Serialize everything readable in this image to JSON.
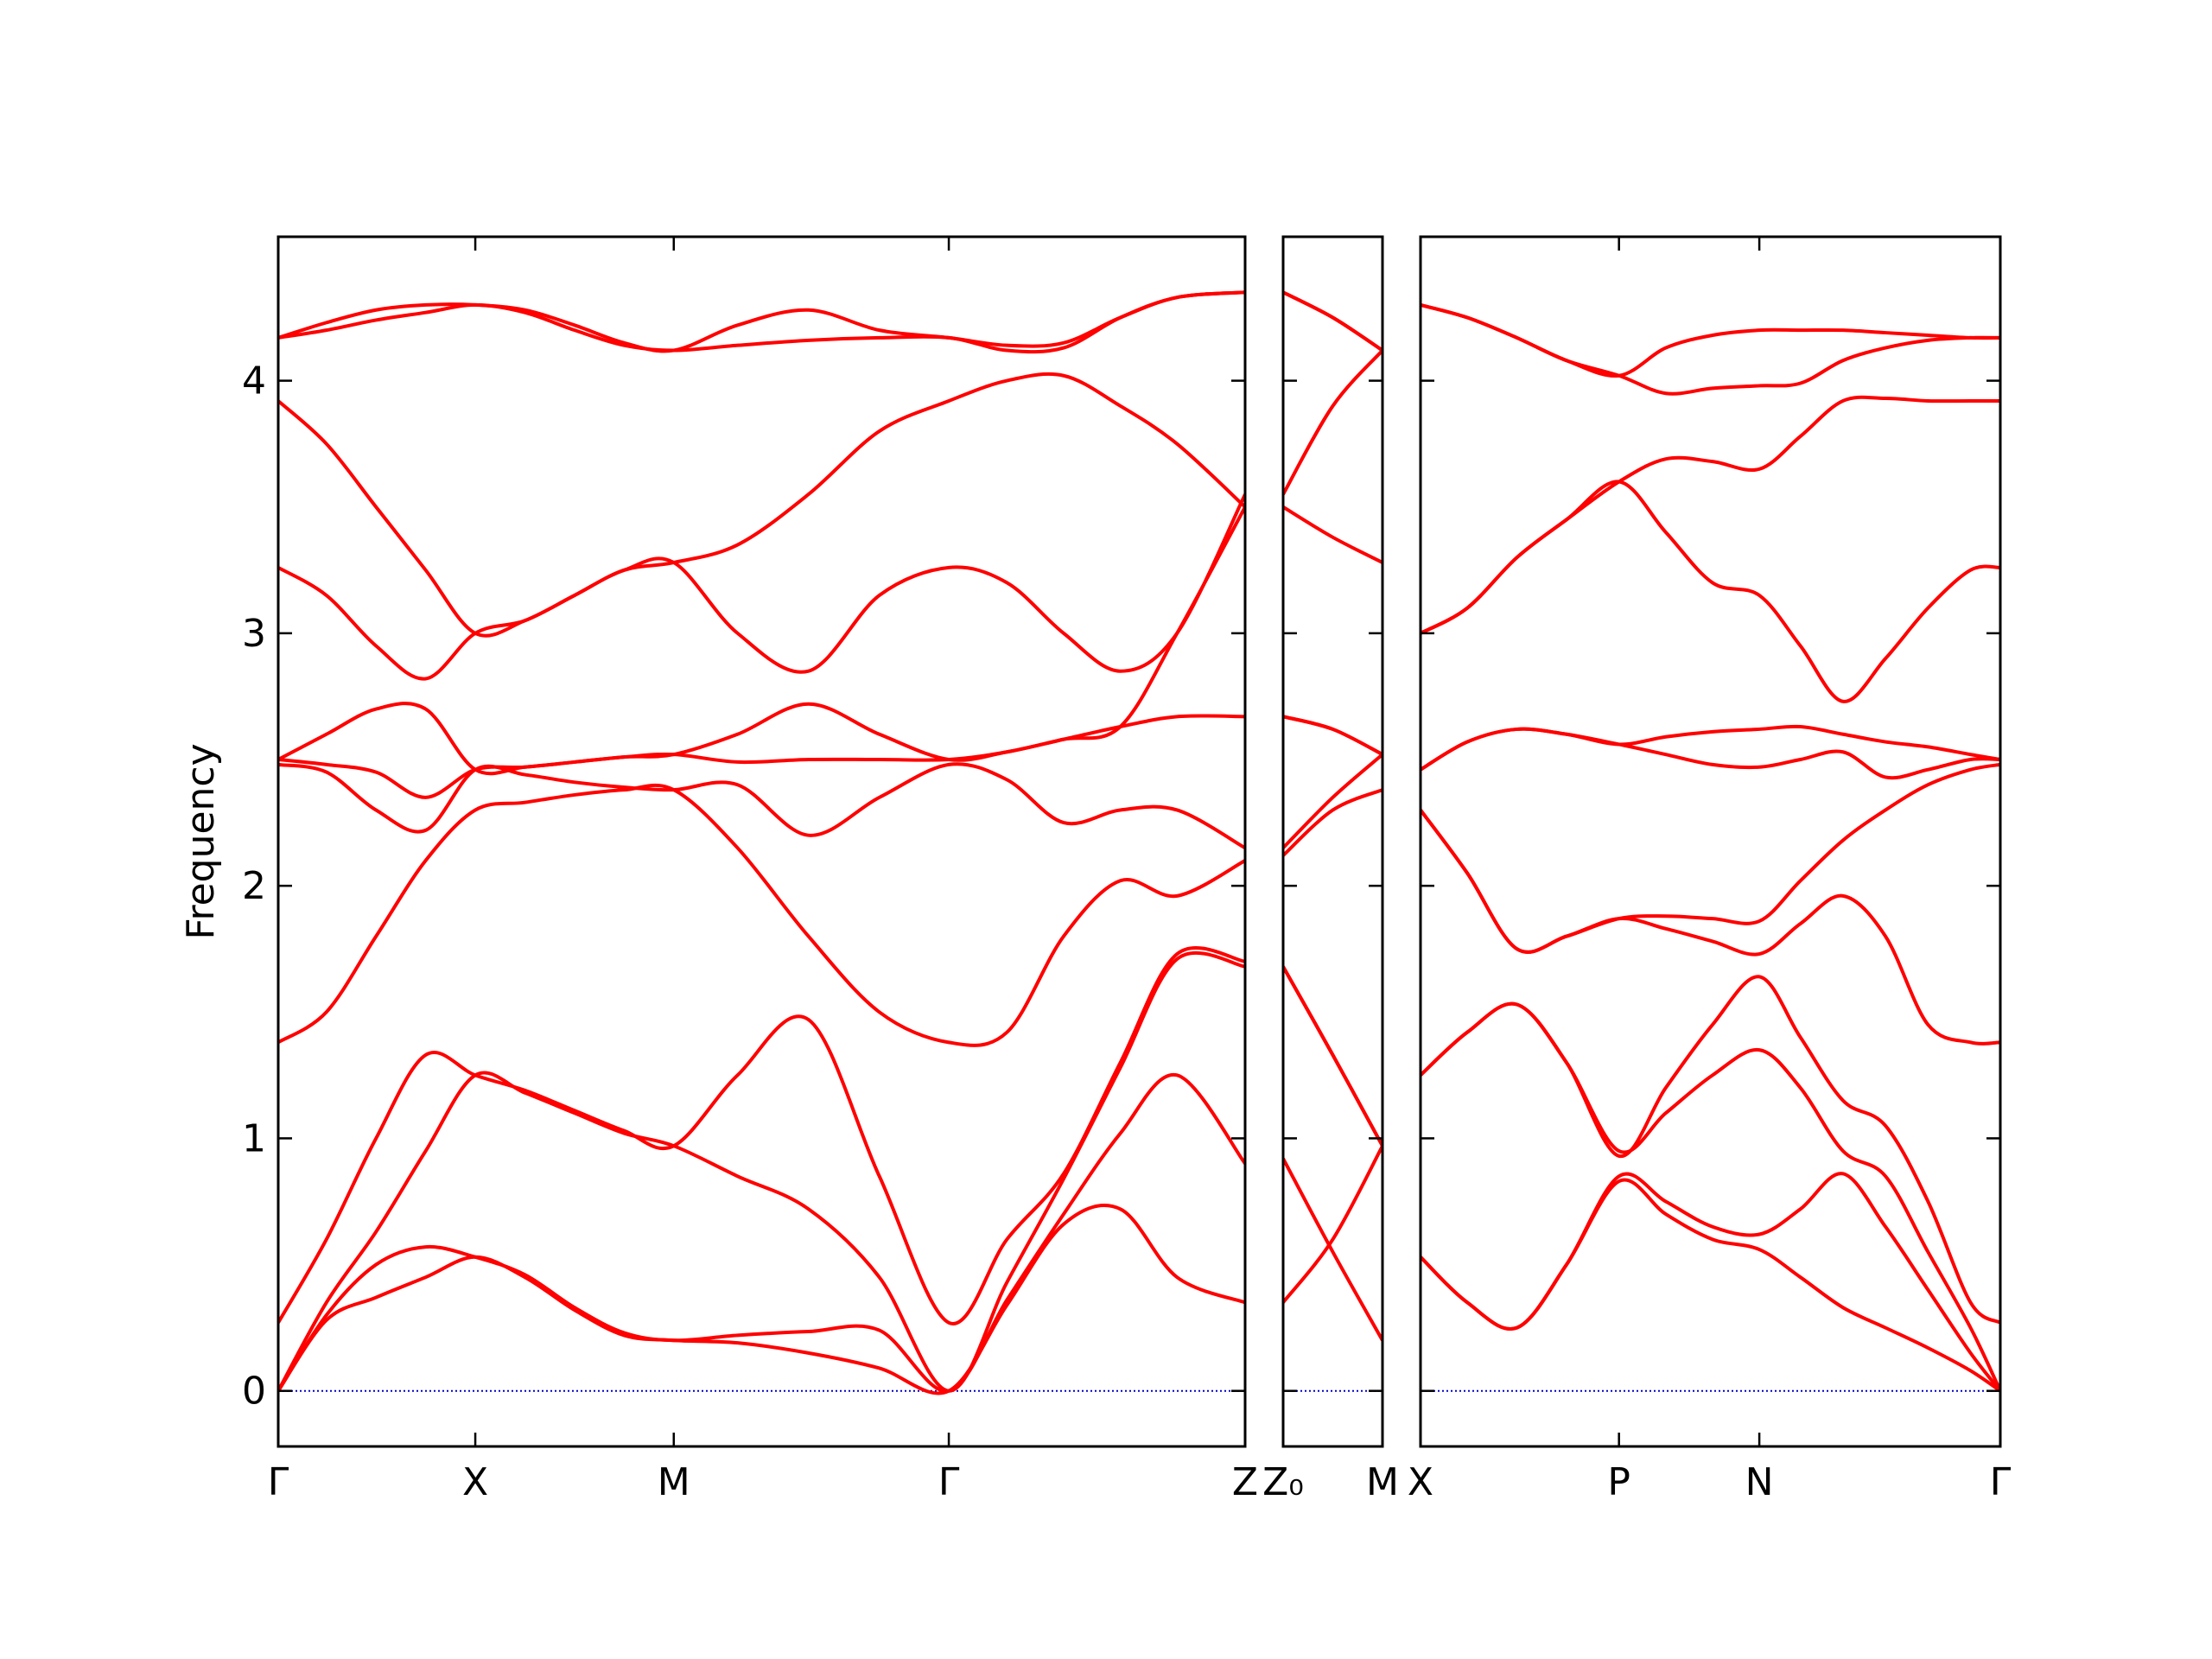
{
  "chart_data": [
    {
      "type": "line",
      "ylabel": "Frequency",
      "x": [
        0,
        0.34,
        0.69,
        1.04,
        1.39,
        1.74,
        2.09,
        2.44,
        2.79,
        3.24,
        3.74,
        4.24,
        4.73,
        5.14,
        5.54,
        5.94,
        6.34,
        6.82
      ],
      "xlim": [
        0,
        6.82
      ],
      "xticks": [
        {
          "value": 0,
          "label": "Γ"
        },
        {
          "value": 1.39,
          "label": "X"
        },
        {
          "value": 2.79,
          "label": "M"
        },
        {
          "value": 4.73,
          "label": "Γ"
        },
        {
          "value": 6.82,
          "label": "Z"
        }
      ],
      "ylim": [
        -0.22,
        4.57
      ],
      "yticks": [
        0,
        1,
        2,
        3,
        4
      ],
      "ytick_labels": true,
      "hlines": [
        0
      ],
      "hline_color": "#0000cc",
      "series": [
        {
          "color": "#ff0000",
          "values": [
            0,
            0.28,
            0.37,
            0.45,
            0.53,
            0.45,
            0.32,
            0.22,
            0.2,
            0.19,
            0.15,
            0.09,
            0,
            0.34,
            0.66,
            0.72,
            0.45,
            0.35
          ]
        },
        {
          "color": "#ff0000",
          "values": [
            0,
            0.3,
            0.5,
            0.57,
            0.53,
            0.46,
            0.33,
            0.23,
            0.2,
            0.22,
            0.235,
            0.24,
            0,
            0.36,
            0.7,
            1.02,
            1.25,
            0.9
          ]
        },
        {
          "color": "#ff0000",
          "values": [
            0,
            0.35,
            0.63,
            0.95,
            1.25,
            1.18,
            1.1,
            1.02,
            0.97,
            0.85,
            0.72,
            0.45,
            0,
            0.43,
            0.84,
            1.28,
            1.71,
            1.68
          ]
        },
        {
          "color": "#ff0000",
          "values": [
            0.27,
            0.6,
            1.0,
            1.33,
            1.25,
            1.19,
            1.11,
            1.03,
            0.97,
            1.25,
            1.47,
            0.85,
            0.27,
            0.6,
            0.86,
            1.3,
            1.73,
            1.7
          ]
        },
        {
          "color": "#ff0000",
          "values": [
            1.38,
            1.5,
            1.8,
            2.1,
            2.3,
            2.33,
            2.36,
            2.38,
            2.38,
            2.15,
            1.8,
            1.5,
            1.38,
            1.42,
            1.8,
            2.02,
            1.96,
            2.1
          ]
        },
        {
          "color": "#ff0000",
          "values": [
            2.48,
            2.45,
            2.3,
            2.22,
            2.46,
            2.44,
            2.41,
            2.39,
            2.38,
            2.4,
            2.2,
            2.35,
            2.48,
            2.42,
            2.25,
            2.3,
            2.3,
            2.15
          ]
        },
        {
          "color": "#ff0000",
          "values": [
            2.5,
            2.48,
            2.45,
            2.35,
            2.46,
            2.47,
            2.49,
            2.51,
            2.52,
            2.49,
            2.5,
            2.5,
            2.5,
            2.53,
            2.58,
            2.63,
            2.67,
            2.67
          ]
        },
        {
          "color": "#ff0000",
          "values": [
            2.5,
            2.6,
            2.7,
            2.7,
            2.46,
            2.47,
            2.49,
            2.51,
            2.52,
            2.6,
            2.72,
            2.6,
            2.5,
            2.53,
            2.58,
            2.63,
            3.0,
            3.5
          ]
        },
        {
          "color": "#ff0000",
          "values": [
            3.26,
            3.15,
            2.95,
            2.82,
            3.0,
            3.05,
            3.15,
            3.25,
            3.28,
            3.0,
            2.85,
            3.15,
            3.26,
            3.2,
            3.0,
            2.85,
            3.0,
            3.55
          ]
        },
        {
          "color": "#ff0000",
          "values": [
            3.92,
            3.75,
            3.5,
            3.25,
            3.0,
            3.05,
            3.15,
            3.25,
            3.28,
            3.35,
            3.55,
            3.8,
            3.92,
            4.0,
            4.02,
            3.9,
            3.75,
            3.5
          ]
        },
        {
          "color": "#ff0000",
          "values": [
            4.17,
            4.2,
            4.24,
            4.27,
            4.3,
            4.27,
            4.2,
            4.14,
            4.12,
            4.14,
            4.16,
            4.17,
            4.17,
            4.12,
            4.13,
            4.25,
            4.33,
            4.35
          ]
        },
        {
          "color": "#ff0000",
          "values": [
            4.17,
            4.23,
            4.28,
            4.3,
            4.3,
            4.28,
            4.22,
            4.15,
            4.12,
            4.22,
            4.28,
            4.2,
            4.17,
            4.14,
            4.15,
            4.25,
            4.33,
            4.35
          ]
        }
      ]
    },
    {
      "type": "line",
      "x": [
        0,
        0.35,
        0.7
      ],
      "xlim": [
        0,
        0.7
      ],
      "xticks": [
        {
          "value": 0,
          "label": "Z₀"
        },
        {
          "value": 0.7,
          "label": "M"
        }
      ],
      "ylim": [
        -0.22,
        4.57
      ],
      "yticks": [
        0,
        1,
        2,
        3,
        4
      ],
      "ytick_labels": false,
      "hlines": [
        0
      ],
      "hline_color": "#0000cc",
      "series": [
        {
          "color": "#ff0000",
          "values": [
            0.92,
            0.55,
            0.2
          ]
        },
        {
          "color": "#ff0000",
          "values": [
            0.35,
            0.6,
            0.97
          ]
        },
        {
          "color": "#ff0000",
          "values": [
            1.68,
            1.33,
            0.97
          ]
        },
        {
          "color": "#ff0000",
          "values": [
            1.68,
            1.33,
            0.97
          ]
        },
        {
          "color": "#ff0000",
          "values": [
            2.12,
            2.3,
            2.38
          ]
        },
        {
          "color": "#ff0000",
          "values": [
            2.15,
            2.35,
            2.52
          ]
        },
        {
          "color": "#ff0000",
          "values": [
            2.67,
            2.62,
            2.52
          ]
        },
        {
          "color": "#ff0000",
          "values": [
            2.67,
            2.62,
            2.52
          ]
        },
        {
          "color": "#ff0000",
          "values": [
            3.5,
            3.38,
            3.28
          ]
        },
        {
          "color": "#ff0000",
          "values": [
            3.55,
            3.9,
            4.12
          ]
        },
        {
          "color": "#ff0000",
          "values": [
            4.35,
            4.25,
            4.12
          ]
        },
        {
          "color": "#ff0000",
          "values": [
            4.35,
            4.25,
            4.12
          ]
        }
      ]
    },
    {
      "type": "line",
      "x": [
        0,
        0.33,
        0.68,
        1.03,
        1.4,
        1.73,
        2.06,
        2.39,
        2.68,
        2.98,
        3.28,
        3.58,
        3.88,
        4.09
      ],
      "xlim": [
        0,
        4.09
      ],
      "xticks": [
        {
          "value": 0,
          "label": "X"
        },
        {
          "value": 1.4,
          "label": "P"
        },
        {
          "value": 2.39,
          "label": "N"
        },
        {
          "value": 4.09,
          "label": "Γ"
        }
      ],
      "ylim": [
        -0.22,
        4.57
      ],
      "yticks": [
        0,
        1,
        2,
        3,
        4
      ],
      "ytick_labels": false,
      "hlines": [
        0
      ],
      "hline_color": "#0000cc",
      "series": [
        {
          "color": "#ff0000",
          "values": [
            0.53,
            0.35,
            0.25,
            0.5,
            0.83,
            0.7,
            0.6,
            0.56,
            0.45,
            0.33,
            0.25,
            0.17,
            0.08,
            0
          ]
        },
        {
          "color": "#ff0000",
          "values": [
            0.53,
            0.35,
            0.25,
            0.5,
            0.85,
            0.75,
            0.65,
            0.62,
            0.72,
            0.86,
            0.65,
            0.4,
            0.15,
            0
          ]
        },
        {
          "color": "#ff0000",
          "values": [
            1.25,
            1.42,
            1.53,
            1.3,
            0.95,
            1.1,
            1.25,
            1.35,
            1.2,
            0.95,
            0.85,
            0.55,
            0.25,
            0
          ]
        },
        {
          "color": "#ff0000",
          "values": [
            1.25,
            1.42,
            1.53,
            1.3,
            0.93,
            1.2,
            1.45,
            1.64,
            1.4,
            1.15,
            1.05,
            0.75,
            0.35,
            0.27
          ]
        },
        {
          "color": "#ff0000",
          "values": [
            2.3,
            2.05,
            1.75,
            1.8,
            1.87,
            1.83,
            1.78,
            1.73,
            1.85,
            1.96,
            1.8,
            1.45,
            1.38,
            1.38
          ]
        },
        {
          "color": "#ff0000",
          "values": [
            2.3,
            2.05,
            1.75,
            1.8,
            1.87,
            1.88,
            1.87,
            1.86,
            2.02,
            2.18,
            2.3,
            2.4,
            2.46,
            2.48
          ]
        },
        {
          "color": "#ff0000",
          "values": [
            2.46,
            2.57,
            2.62,
            2.6,
            2.56,
            2.52,
            2.48,
            2.47,
            2.5,
            2.53,
            2.43,
            2.46,
            2.5,
            2.5
          ]
        },
        {
          "color": "#ff0000",
          "values": [
            2.46,
            2.57,
            2.62,
            2.6,
            2.56,
            2.59,
            2.61,
            2.62,
            2.63,
            2.6,
            2.57,
            2.55,
            2.52,
            2.5
          ]
        },
        {
          "color": "#ff0000",
          "values": [
            3.0,
            3.1,
            3.3,
            3.45,
            3.6,
            3.4,
            3.2,
            3.15,
            2.95,
            2.73,
            2.9,
            3.1,
            3.25,
            3.26
          ]
        },
        {
          "color": "#ff0000",
          "values": [
            3.0,
            3.1,
            3.3,
            3.45,
            3.6,
            3.69,
            3.68,
            3.65,
            3.78,
            3.92,
            3.93,
            3.92,
            3.92,
            3.92
          ]
        },
        {
          "color": "#ff0000",
          "values": [
            4.3,
            4.25,
            4.17,
            4.08,
            4.02,
            3.95,
            3.97,
            3.98,
            3.99,
            4.08,
            4.13,
            4.16,
            4.17,
            4.17
          ]
        },
        {
          "color": "#ff0000",
          "values": [
            4.3,
            4.25,
            4.17,
            4.08,
            4.02,
            4.13,
            4.18,
            4.2,
            4.2,
            4.2,
            4.19,
            4.18,
            4.17,
            4.17
          ]
        }
      ]
    }
  ]
}
